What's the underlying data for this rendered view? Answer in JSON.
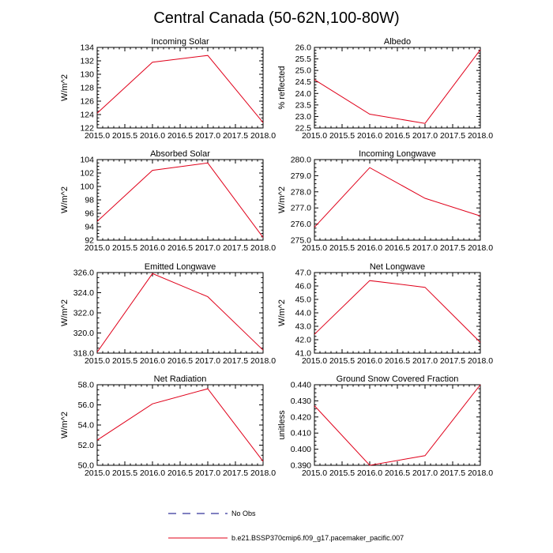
{
  "figure": {
    "title": "Central Canada (50-62N,100-80W)"
  },
  "chart_data": [
    {
      "type": "line",
      "title": "Incoming Solar",
      "ylabel": "W/m^2",
      "x": [
        2015,
        2016,
        2017,
        2018
      ],
      "series": [
        {
          "name": "b.e21.BSSP370cmip6.f09_g17.pacemaker_pacific.007",
          "values": [
            124.2,
            131.8,
            132.8,
            122.8
          ]
        }
      ],
      "xlim": [
        2015,
        2018
      ],
      "ylim": [
        122,
        134
      ],
      "xticks": [
        "2015.0",
        "2015.5",
        "2016.0",
        "2016.5",
        "2017.0",
        "2017.5",
        "2018.0"
      ],
      "yticks": [
        "122",
        "124",
        "126",
        "128",
        "130",
        "132",
        "134"
      ]
    },
    {
      "type": "line",
      "title": "Albedo",
      "ylabel": "% reflected",
      "x": [
        2015,
        2016,
        2017,
        2018
      ],
      "series": [
        {
          "name": "b.e21.BSSP370cmip6.f09_g17.pacemaker_pacific.007",
          "values": [
            24.6,
            23.1,
            22.7,
            25.9
          ]
        }
      ],
      "xlim": [
        2015,
        2018
      ],
      "ylim": [
        22.5,
        26.0
      ],
      "xticks": [
        "2015.0",
        "2015.5",
        "2016.0",
        "2016.5",
        "2017.0",
        "2017.5",
        "2018.0"
      ],
      "yticks": [
        "22.5",
        "23.0",
        "23.5",
        "24.0",
        "24.5",
        "25.0",
        "25.5",
        "26.0"
      ]
    },
    {
      "type": "line",
      "title": "Absorbed Solar",
      "ylabel": "W/m^2",
      "x": [
        2015,
        2016,
        2017,
        2018
      ],
      "series": [
        {
          "name": "b.e21.BSSP370cmip6.f09_g17.pacemaker_pacific.007",
          "values": [
            94.8,
            102.4,
            103.5,
            92.4
          ]
        }
      ],
      "xlim": [
        2015,
        2018
      ],
      "ylim": [
        92,
        104
      ],
      "xticks": [
        "2015.0",
        "2015.5",
        "2016.0",
        "2016.5",
        "2017.0",
        "2017.5",
        "2018.0"
      ],
      "yticks": [
        "92",
        "94",
        "96",
        "98",
        "100",
        "102",
        "104"
      ]
    },
    {
      "type": "line",
      "title": "Incoming Longwave",
      "ylabel": "W/m^2",
      "x": [
        2015,
        2016,
        2017,
        2018
      ],
      "series": [
        {
          "name": "b.e21.BSSP370cmip6.f09_g17.pacemaker_pacific.007",
          "values": [
            275.8,
            279.5,
            277.6,
            276.5
          ]
        }
      ],
      "xlim": [
        2015,
        2018
      ],
      "ylim": [
        275.0,
        280.0
      ],
      "xticks": [
        "2015.0",
        "2015.5",
        "2016.0",
        "2016.5",
        "2017.0",
        "2017.5",
        "2018.0"
      ],
      "yticks": [
        "275.0",
        "276.0",
        "277.0",
        "278.0",
        "279.0",
        "280.0"
      ]
    },
    {
      "type": "line",
      "title": "Emitted Longwave",
      "ylabel": "W/m^2",
      "x": [
        2015,
        2016,
        2017,
        2018
      ],
      "series": [
        {
          "name": "b.e21.BSSP370cmip6.f09_g17.pacemaker_pacific.007",
          "values": [
            318.1,
            325.9,
            323.6,
            318.3
          ]
        }
      ],
      "xlim": [
        2015,
        2018
      ],
      "ylim": [
        318.0,
        326.0
      ],
      "xticks": [
        "2015.0",
        "2015.5",
        "2016.0",
        "2016.5",
        "2017.0",
        "2017.5",
        "2018.0"
      ],
      "yticks": [
        "318.0",
        "320.0",
        "322.0",
        "324.0",
        "326.0"
      ]
    },
    {
      "type": "line",
      "title": "Net Longwave",
      "ylabel": "W/m^2",
      "x": [
        2015,
        2016,
        2017,
        2018
      ],
      "series": [
        {
          "name": "b.e21.BSSP370cmip6.f09_g17.pacemaker_pacific.007",
          "values": [
            42.4,
            46.4,
            45.9,
            41.8
          ]
        }
      ],
      "xlim": [
        2015,
        2018
      ],
      "ylim": [
        41.0,
        47.0
      ],
      "xticks": [
        "2015.0",
        "2015.5",
        "2016.0",
        "2016.5",
        "2017.0",
        "2017.5",
        "2018.0"
      ],
      "yticks": [
        "41.0",
        "42.0",
        "43.0",
        "44.0",
        "45.0",
        "46.0",
        "47.0"
      ]
    },
    {
      "type": "line",
      "title": "Net Radiation",
      "ylabel": "W/m^2",
      "x": [
        2015,
        2016,
        2017,
        2018
      ],
      "series": [
        {
          "name": "b.e21.BSSP370cmip6.f09_g17.pacemaker_pacific.007",
          "values": [
            52.5,
            56.1,
            57.6,
            50.4
          ]
        }
      ],
      "xlim": [
        2015,
        2018
      ],
      "ylim": [
        50.0,
        58.0
      ],
      "xticks": [
        "2015.0",
        "2015.5",
        "2016.0",
        "2016.5",
        "2017.0",
        "2017.5",
        "2018.0"
      ],
      "yticks": [
        "50.0",
        "52.0",
        "54.0",
        "56.0",
        "58.0"
      ]
    },
    {
      "type": "line",
      "title": "Ground Snow Covered Fraction",
      "ylabel": "unitless",
      "x": [
        2015,
        2016,
        2017,
        2018
      ],
      "series": [
        {
          "name": "b.e21.BSSP370cmip6.f09_g17.pacemaker_pacific.007",
          "values": [
            0.427,
            0.39,
            0.396,
            0.44
          ]
        }
      ],
      "xlim": [
        2015,
        2018
      ],
      "ylim": [
        0.39,
        0.44
      ],
      "xticks": [
        "2015.0",
        "2015.5",
        "2016.0",
        "2016.5",
        "2017.0",
        "2017.5",
        "2018.0"
      ],
      "yticks": [
        "0.390",
        "0.400",
        "0.410",
        "0.420",
        "0.430",
        "0.440"
      ]
    }
  ],
  "legend": {
    "entries": [
      {
        "label": "No Obs",
        "color": "#000080",
        "dash": true
      },
      {
        "label": "b.e21.BSSP370cmip6.f09_g17.pacemaker_pacific.007",
        "color": "#e0001a",
        "dash": false
      }
    ]
  },
  "colors": {
    "line": "#e0001a",
    "axis": "#000000"
  }
}
